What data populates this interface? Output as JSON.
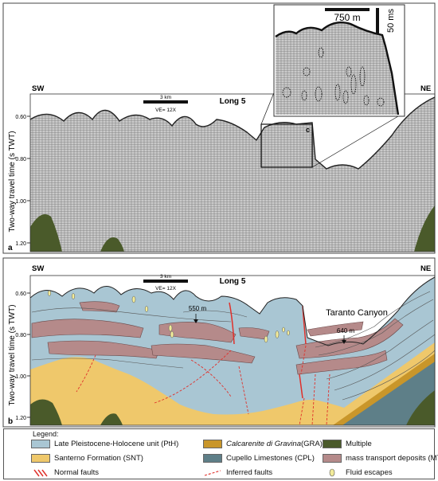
{
  "panel_a": {
    "letter": "a",
    "left_label": "SW",
    "right_label": "NE",
    "line_name": "Long 5",
    "scale_label": "3 km",
    "ve_label": "VE= 12X",
    "y_axis_title": "Two-way travel time (s TWT)",
    "y_ticks": [
      "0.60",
      "0.80",
      "1.00",
      "1.20"
    ],
    "inset_letter": "c"
  },
  "inset_c": {
    "scale_h_label": "750 m",
    "scale_v_label": "50 ms"
  },
  "panel_b": {
    "letter": "b",
    "left_label": "SW",
    "right_label": "NE",
    "line_name": "Long 5",
    "scale_label": "3 km",
    "ve_label": "VE= 12X",
    "y_axis_title": "Two-way travel time (s TWT)",
    "y_ticks": [
      "0.60",
      "0.80",
      "1.00",
      "1.20"
    ],
    "annot_550": "550 m",
    "annot_640": "640 m",
    "canyon_label": "Taranto Canyon"
  },
  "legend": {
    "title": "Legend:",
    "items": [
      {
        "label": "Late Pleistocene-Holocene unit (PtH)",
        "color": "#a9c6d3"
      },
      {
        "label": "Santerno Formation (SNT)",
        "color": "#efc86b"
      },
      {
        "label": "Normal faults",
        "color": "#e0302b"
      },
      {
        "label": "Calcarenite di Gravina",
        "label_suffix": " (GRA)",
        "color": "#c9962a"
      },
      {
        "label": "Cupello Limestones (CPL)",
        "color": "#5e7f88"
      },
      {
        "label": "Inferred faults",
        "color": "#e0302b"
      },
      {
        "label": "Multiple",
        "color": "#4a5a2a"
      },
      {
        "label": "mass transport deposits (MTDs)",
        "color": "#b58a8a"
      },
      {
        "label": "Fluid escapes",
        "color": "#f2eb9a"
      }
    ]
  }
}
